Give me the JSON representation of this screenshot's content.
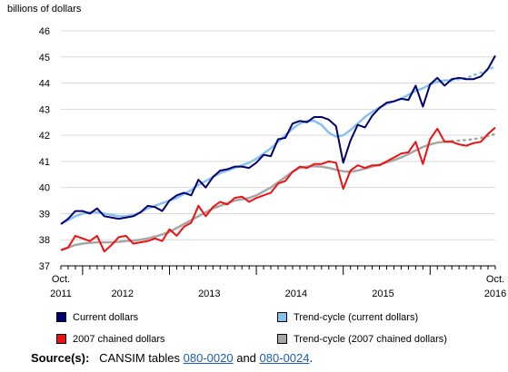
{
  "chart_data": {
    "type": "line",
    "ylabel": "billions of dollars",
    "ylim": [
      37,
      46
    ],
    "yticks": [
      37,
      38,
      39,
      40,
      41,
      42,
      43,
      44,
      45,
      46
    ],
    "x_start": "2011-10",
    "x_end": "2016-10",
    "x_tick_labels": [
      {
        "line1": "Oct.",
        "line2": "2011"
      },
      {
        "line1": "",
        "line2": "2012"
      },
      {
        "line1": "",
        "line2": "2013"
      },
      {
        "line1": "",
        "line2": "2014"
      },
      {
        "line1": "",
        "line2": "2015"
      },
      {
        "line1": "Oct.",
        "line2": "2016"
      }
    ],
    "grid": "horizontal",
    "x": [
      "2011-10",
      "2011-11",
      "2011-12",
      "2012-01",
      "2012-02",
      "2012-03",
      "2012-04",
      "2012-05",
      "2012-06",
      "2012-07",
      "2012-08",
      "2012-09",
      "2012-10",
      "2012-11",
      "2012-12",
      "2013-01",
      "2013-02",
      "2013-03",
      "2013-04",
      "2013-05",
      "2013-06",
      "2013-07",
      "2013-08",
      "2013-09",
      "2013-10",
      "2013-11",
      "2013-12",
      "2014-01",
      "2014-02",
      "2014-03",
      "2014-04",
      "2014-05",
      "2014-06",
      "2014-07",
      "2014-08",
      "2014-09",
      "2014-10",
      "2014-11",
      "2014-12",
      "2015-01",
      "2015-02",
      "2015-03",
      "2015-04",
      "2015-05",
      "2015-06",
      "2015-07",
      "2015-08",
      "2015-09",
      "2015-10",
      "2015-11",
      "2015-12",
      "2016-01",
      "2016-02",
      "2016-03",
      "2016-04",
      "2016-05",
      "2016-06",
      "2016-07",
      "2016-08",
      "2016-09",
      "2016-10"
    ],
    "series": [
      {
        "name": "Current dollars",
        "color": "#00006e",
        "values": [
          38.6,
          38.8,
          39.1,
          39.1,
          39.0,
          39.2,
          38.9,
          38.85,
          38.8,
          38.85,
          38.9,
          39.05,
          39.3,
          39.25,
          39.1,
          39.5,
          39.7,
          39.8,
          39.7,
          40.3,
          40.0,
          40.4,
          40.65,
          40.7,
          40.8,
          40.8,
          40.75,
          40.95,
          41.25,
          41.2,
          41.85,
          41.9,
          42.45,
          42.55,
          42.5,
          42.7,
          42.7,
          42.6,
          42.35,
          40.95,
          41.8,
          42.4,
          42.3,
          42.75,
          43.05,
          43.25,
          43.3,
          43.4,
          43.35,
          43.9,
          43.1,
          43.95,
          44.2,
          43.9,
          44.15,
          44.2,
          44.15,
          44.15,
          44.25,
          44.55,
          45.05
        ]
      },
      {
        "name": "Trend-cycle (current dollars)",
        "color": "#88c2ef",
        "projected_from": "2016-04",
        "values": [
          38.6,
          38.75,
          38.9,
          39.0,
          39.05,
          39.05,
          39.0,
          38.95,
          38.9,
          38.9,
          38.95,
          39.05,
          39.2,
          39.3,
          39.4,
          39.5,
          39.6,
          39.75,
          39.9,
          40.1,
          40.25,
          40.4,
          40.55,
          40.65,
          40.75,
          40.85,
          40.95,
          41.1,
          41.3,
          41.5,
          41.75,
          42.0,
          42.25,
          42.45,
          42.55,
          42.55,
          42.4,
          42.1,
          41.95,
          42.0,
          42.2,
          42.45,
          42.7,
          42.9,
          43.05,
          43.2,
          43.3,
          43.4,
          43.55,
          43.7,
          43.8,
          43.95,
          44.05,
          44.1,
          44.1,
          44.15,
          44.2,
          44.3,
          44.4,
          44.5,
          44.65
        ]
      },
      {
        "name": "2007 chained dollars",
        "color": "#ee1111",
        "values": [
          37.6,
          37.7,
          38.15,
          38.05,
          37.95,
          38.15,
          37.55,
          37.8,
          38.1,
          38.15,
          37.85,
          37.9,
          37.95,
          38.05,
          37.95,
          38.4,
          38.15,
          38.5,
          38.65,
          39.3,
          38.9,
          39.25,
          39.45,
          39.35,
          39.6,
          39.65,
          39.45,
          39.6,
          39.7,
          39.8,
          40.15,
          40.25,
          40.6,
          40.8,
          40.75,
          40.9,
          40.9,
          41.0,
          40.95,
          39.95,
          40.65,
          40.85,
          40.75,
          40.85,
          40.85,
          41.0,
          41.15,
          41.3,
          41.35,
          41.75,
          40.9,
          41.85,
          42.25,
          41.75,
          41.75,
          41.65,
          41.6,
          41.7,
          41.75,
          42.05,
          42.3
        ]
      },
      {
        "name": "Trend-cycle (2007 chained dollars)",
        "color": "#a6a6a6",
        "projected_from": "2016-04",
        "values": [
          37.6,
          37.7,
          37.8,
          37.85,
          37.88,
          37.9,
          37.9,
          37.9,
          37.92,
          37.95,
          37.97,
          38.0,
          38.05,
          38.12,
          38.2,
          38.3,
          38.45,
          38.6,
          38.75,
          38.9,
          39.05,
          39.2,
          39.3,
          39.4,
          39.5,
          39.55,
          39.6,
          39.7,
          39.85,
          40.0,
          40.2,
          40.4,
          40.6,
          40.75,
          40.8,
          40.82,
          40.8,
          40.75,
          40.68,
          40.62,
          40.6,
          40.65,
          40.72,
          40.8,
          40.88,
          40.96,
          41.05,
          41.15,
          41.28,
          41.42,
          41.55,
          41.65,
          41.72,
          41.75,
          41.78,
          41.8,
          41.82,
          41.85,
          41.9,
          41.97,
          42.05
        ]
      }
    ]
  },
  "legend": [
    {
      "label": "Current dollars",
      "color": "#00006e"
    },
    {
      "label": "Trend-cycle (current dollars)",
      "color": "#88c2ef"
    },
    {
      "label": "2007 chained dollars",
      "color": "#ee1111"
    },
    {
      "label": "Trend-cycle (2007 chained dollars)",
      "color": "#a6a6a6"
    }
  ],
  "source": {
    "label": "Source(s):",
    "prefix": "CANSIM tables",
    "link1": "080-0020",
    "middle": "and",
    "link2": "080-0024",
    "suffix": "."
  }
}
